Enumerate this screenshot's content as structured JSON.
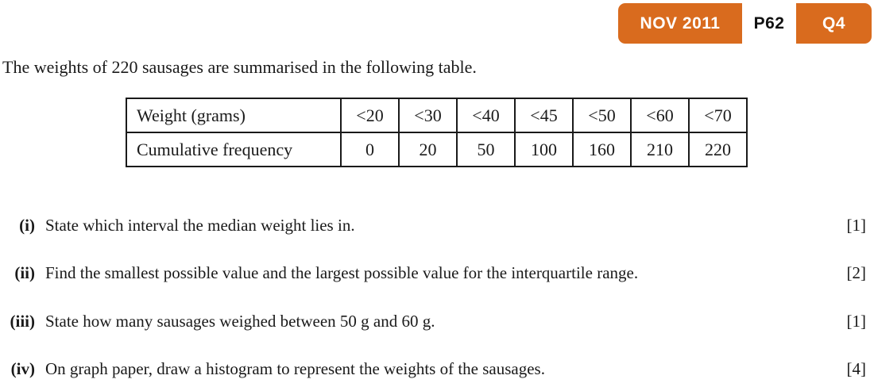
{
  "badge": {
    "session": "NOV 2011",
    "paper": "P62",
    "question": "Q4",
    "bg_color": "#d96b1e",
    "session_text_color": "#ffffff",
    "paper_bg_color": "#ffffff",
    "paper_text_color": "#111111"
  },
  "intro": "The weights of 220 sausages are summarised in the following table.",
  "table": {
    "row1": {
      "label": "Weight (grams)",
      "cells": [
        "<20",
        "<30",
        "<40",
        "<45",
        "<50",
        "<60",
        "<70"
      ]
    },
    "row2": {
      "label": "Cumulative frequency",
      "cells": [
        "0",
        "20",
        "50",
        "100",
        "160",
        "210",
        "220"
      ]
    }
  },
  "questions": [
    {
      "label": "(i)",
      "text": "State which interval the median weight lies in.",
      "marks": "[1]"
    },
    {
      "label": "(ii)",
      "text": "Find the smallest possible value and the largest possible value for the interquartile range.",
      "marks": "[2]"
    },
    {
      "label": "(iii)",
      "text": "State how many sausages weighed between 50 g and 60 g.",
      "marks": "[1]"
    },
    {
      "label": "(iv)",
      "text": "On graph paper, draw a histogram to represent the weights of the sausages.",
      "marks": "[4]"
    }
  ]
}
